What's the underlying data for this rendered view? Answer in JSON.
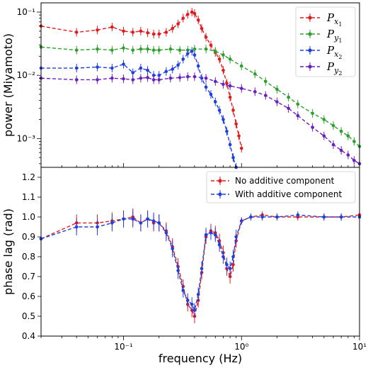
{
  "colors": {
    "red": "#e31a1c",
    "green": "#2ca02c",
    "blue": "#1f3fe0",
    "purple": "#6a1fc0"
  },
  "chart_data": [
    {
      "type": "line",
      "xscale": "log",
      "yscale": "log",
      "xlim": [
        0.02,
        10
      ],
      "ylim": [
        0.00035,
        0.14
      ],
      "ylabel": "power (Miyamoto)",
      "xticks": [
        0.1,
        1,
        10
      ],
      "yticks": [
        0.001,
        0.01,
        0.1
      ],
      "yticklabels": [
        "10⁻³",
        "10⁻²",
        "10⁻¹"
      ],
      "legend_position": "top-right",
      "series": [
        {
          "name": "P_x1",
          "label_main": "P",
          "label_sub": "x",
          "label_subsub": "1",
          "color_key": "red",
          "x": [
            0.02,
            0.04,
            0.06,
            0.08,
            0.1,
            0.12,
            0.14,
            0.16,
            0.18,
            0.2,
            0.23,
            0.26,
            0.29,
            0.32,
            0.35,
            0.38,
            0.4,
            0.43,
            0.46,
            0.5,
            0.55,
            0.6,
            0.65,
            0.7,
            0.75,
            0.8,
            0.85,
            0.9,
            0.95,
            1.0
          ],
          "y": [
            0.06,
            0.048,
            0.052,
            0.058,
            0.05,
            0.048,
            0.05,
            0.047,
            0.045,
            0.045,
            0.048,
            0.055,
            0.065,
            0.08,
            0.092,
            0.1,
            0.095,
            0.075,
            0.055,
            0.04,
            0.03,
            0.023,
            0.018,
            0.012,
            0.0075,
            0.0045,
            0.0028,
            0.0017,
            0.0011,
            0.0007
          ]
        },
        {
          "name": "P_y1",
          "label_main": "P",
          "label_sub": "y",
          "label_subsub": "1",
          "color_key": "green",
          "x": [
            0.02,
            0.04,
            0.06,
            0.08,
            0.1,
            0.12,
            0.14,
            0.16,
            0.18,
            0.2,
            0.25,
            0.3,
            0.35,
            0.4,
            0.5,
            0.6,
            0.7,
            0.8,
            1.0,
            1.3,
            1.6,
            2,
            2.5,
            3,
            4,
            5,
            6,
            7,
            8,
            9,
            10
          ],
          "y": [
            0.028,
            0.025,
            0.026,
            0.025,
            0.027,
            0.025,
            0.026,
            0.026,
            0.025,
            0.025,
            0.026,
            0.025,
            0.025,
            0.026,
            0.026,
            0.024,
            0.021,
            0.018,
            0.014,
            0.0105,
            0.008,
            0.006,
            0.0045,
            0.0035,
            0.0025,
            0.002,
            0.0016,
            0.0013,
            0.0011,
            0.0009,
            0.00075
          ]
        },
        {
          "name": "P_x2",
          "label_main": "P",
          "label_sub": "x",
          "label_subsub": "2",
          "color_key": "blue",
          "x": [
            0.02,
            0.04,
            0.06,
            0.08,
            0.1,
            0.12,
            0.14,
            0.16,
            0.18,
            0.2,
            0.23,
            0.26,
            0.29,
            0.32,
            0.35,
            0.38,
            0.4,
            0.43,
            0.46,
            0.5,
            0.55,
            0.6,
            0.65,
            0.7,
            0.75,
            0.8,
            0.85,
            0.9
          ],
          "y": [
            0.013,
            0.013,
            0.0135,
            0.013,
            0.015,
            0.011,
            0.013,
            0.012,
            0.01,
            0.01,
            0.0115,
            0.0125,
            0.0145,
            0.018,
            0.022,
            0.024,
            0.021,
            0.014,
            0.009,
            0.0065,
            0.005,
            0.0038,
            0.0028,
            0.002,
            0.0013,
            0.0008,
            0.0005,
            0.00035
          ]
        },
        {
          "name": "P_y2",
          "label_main": "P",
          "label_sub": "y",
          "label_subsub": "2",
          "color_key": "purple",
          "x": [
            0.02,
            0.04,
            0.06,
            0.08,
            0.1,
            0.12,
            0.14,
            0.16,
            0.18,
            0.2,
            0.25,
            0.3,
            0.35,
            0.4,
            0.5,
            0.6,
            0.7,
            0.8,
            1.0,
            1.3,
            1.6,
            2,
            2.5,
            3,
            4,
            5,
            6,
            7,
            8,
            9,
            10
          ],
          "y": [
            0.009,
            0.0085,
            0.0085,
            0.009,
            0.0088,
            0.0085,
            0.009,
            0.0092,
            0.0085,
            0.0085,
            0.009,
            0.0092,
            0.0095,
            0.0095,
            0.009,
            0.008,
            0.0072,
            0.0068,
            0.0062,
            0.0055,
            0.0048,
            0.0038,
            0.003,
            0.0023,
            0.0015,
            0.0011,
            0.0008,
            0.00065,
            0.00055,
            0.00045,
            0.0004
          ]
        }
      ]
    },
    {
      "type": "line",
      "xscale": "log",
      "xlim": [
        0.02,
        10
      ],
      "ylim": [
        0.4,
        1.25
      ],
      "xlabel": "frequency (Hz)",
      "ylabel": "phase lag (rad)",
      "xticks": [
        0.1,
        1,
        10
      ],
      "xticklabels": [
        "10⁻¹",
        "10⁰",
        "10¹"
      ],
      "yticks": [
        0.4,
        0.5,
        0.6,
        0.7,
        0.8,
        0.9,
        1.0,
        1.1,
        1.2
      ],
      "yticklabels": [
        "0.4",
        "0.5",
        "0.6",
        "0.7",
        "0.8",
        "0.9",
        "1.0",
        "1.1",
        "1.2"
      ],
      "legend_position": "top-right",
      "series": [
        {
          "name": "No additive component",
          "color_key": "red",
          "x": [
            0.02,
            0.04,
            0.06,
            0.08,
            0.1,
            0.12,
            0.14,
            0.16,
            0.18,
            0.2,
            0.23,
            0.26,
            0.29,
            0.32,
            0.35,
            0.38,
            0.4,
            0.43,
            0.46,
            0.5,
            0.55,
            0.6,
            0.65,
            0.7,
            0.75,
            0.8,
            0.85,
            0.9,
            1.0,
            1.2,
            1.5,
            2,
            3,
            5,
            7,
            10
          ],
          "y": [
            0.89,
            0.97,
            0.97,
            0.98,
            0.99,
            1.0,
            0.97,
            0.99,
            0.97,
            0.97,
            0.93,
            0.85,
            0.75,
            0.65,
            0.56,
            0.53,
            0.5,
            0.58,
            0.72,
            0.9,
            0.93,
            0.92,
            0.88,
            0.82,
            0.74,
            0.7,
            0.76,
            0.88,
            0.98,
            1.0,
            1.01,
            1.0,
            1.0,
            1.0,
            1.0,
            1.01
          ]
        },
        {
          "name": "With additive component",
          "color_key": "blue",
          "x": [
            0.02,
            0.04,
            0.06,
            0.08,
            0.1,
            0.12,
            0.14,
            0.16,
            0.18,
            0.2,
            0.23,
            0.26,
            0.29,
            0.32,
            0.35,
            0.38,
            0.4,
            0.43,
            0.46,
            0.5,
            0.55,
            0.6,
            0.65,
            0.7,
            0.75,
            0.8,
            0.85,
            0.9,
            1.0,
            1.2,
            1.5,
            2,
            3,
            5,
            7,
            10
          ],
          "y": [
            0.89,
            0.95,
            0.95,
            0.97,
            0.99,
            0.99,
            0.97,
            0.99,
            0.98,
            0.97,
            0.92,
            0.84,
            0.73,
            0.63,
            0.58,
            0.56,
            0.53,
            0.61,
            0.74,
            0.91,
            0.92,
            0.91,
            0.86,
            0.8,
            0.76,
            0.74,
            0.8,
            0.9,
            0.98,
            1.0,
            1.0,
            1.0,
            1.01,
            1.0,
            1.0,
            1.0
          ]
        }
      ]
    }
  ]
}
